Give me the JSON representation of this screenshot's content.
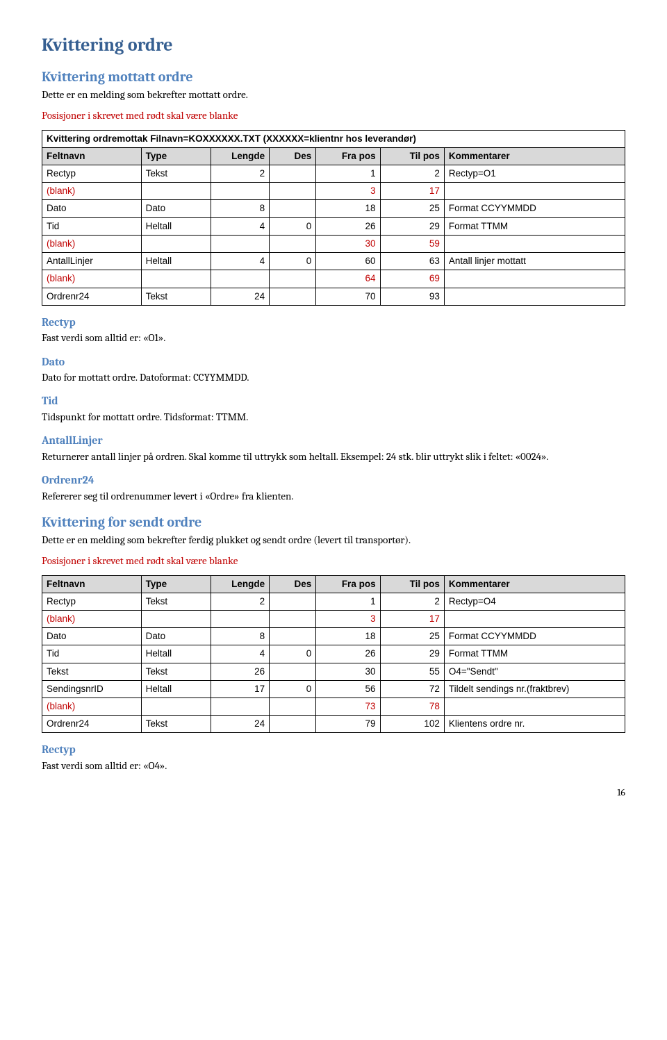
{
  "h1": "Kvittering ordre",
  "sec1": {
    "h2": "Kvittering mottatt ordre",
    "intro": "Dette er en melding som bekrefter mottatt ordre.",
    "redline": "Posisjoner i skrevet med rødt skal være blanke",
    "caption": "Kvittering ordremottak Filnavn=KOXXXXXX.TXT  (XXXXXX=klientnr hos leverandør)",
    "headers": [
      "Feltnavn",
      "Type",
      "Lengde",
      "Des",
      "Fra pos",
      "Til pos",
      "Kommentarer"
    ],
    "rows": [
      {
        "f": "Rectyp",
        "t": "Tekst",
        "l": "2",
        "d": "",
        "fp": "1",
        "tp": "2",
        "k": "Rectyp=O1",
        "red": false
      },
      {
        "f": "(blank)",
        "t": "",
        "l": "",
        "d": "",
        "fp": "3",
        "tp": "17",
        "k": "",
        "red": true
      },
      {
        "f": "Dato",
        "t": "Dato",
        "l": "8",
        "d": "",
        "fp": "18",
        "tp": "25",
        "k": "Format CCYYMMDD",
        "red": false
      },
      {
        "f": "Tid",
        "t": "Heltall",
        "l": "4",
        "d": "0",
        "fp": "26",
        "tp": "29",
        "k": "Format TTMM",
        "red": false
      },
      {
        "f": "(blank)",
        "t": "",
        "l": "",
        "d": "",
        "fp": "30",
        "tp": "59",
        "k": "",
        "red": true
      },
      {
        "f": "AntallLinjer",
        "t": "Heltall",
        "l": "4",
        "d": "0",
        "fp": "60",
        "tp": "63",
        "k": "Antall linjer mottatt",
        "red": false
      },
      {
        "f": "(blank)",
        "t": "",
        "l": "",
        "d": "",
        "fp": "64",
        "tp": "69",
        "k": "",
        "red": true
      },
      {
        "f": "Ordrenr24",
        "t": "Tekst",
        "l": "24",
        "d": "",
        "fp": "70",
        "tp": "93",
        "k": "",
        "red": false
      }
    ],
    "defs": [
      {
        "h": "Rectyp",
        "p": "Fast verdi som alltid er: «O1»."
      },
      {
        "h": "Dato",
        "p": "Dato for mottatt ordre. Datoformat: CCYYMMDD."
      },
      {
        "h": "Tid",
        "p": "Tidspunkt for mottatt ordre. Tidsformat: TTMM."
      },
      {
        "h": "AntallLinjer",
        "p": "Returnerer antall linjer på ordren. Skal komme til uttrykk som heltall. Eksempel: 24 stk. blir uttrykt slik i feltet: «0024»."
      },
      {
        "h": "Ordrenr24",
        "p": "Refererer seg til ordrenummer levert i «Ordre» fra klienten."
      }
    ]
  },
  "sec2": {
    "h2": "Kvittering for sendt ordre",
    "intro": "Dette er en melding som bekrefter ferdig plukket og sendt ordre (levert til transportør).",
    "redline": "Posisjoner i skrevet med rødt skal være blanke",
    "headers": [
      "Feltnavn",
      "Type",
      "Lengde",
      "Des",
      "Fra pos",
      "Til pos",
      "Kommentarer"
    ],
    "rows": [
      {
        "f": "Rectyp",
        "t": "Tekst",
        "l": "2",
        "d": "",
        "fp": "1",
        "tp": "2",
        "k": "Rectyp=O4",
        "red": false
      },
      {
        "f": "(blank)",
        "t": "",
        "l": "",
        "d": "",
        "fp": "3",
        "tp": "17",
        "k": "",
        "red": true
      },
      {
        "f": "Dato",
        "t": "Dato",
        "l": "8",
        "d": "",
        "fp": "18",
        "tp": "25",
        "k": "Format CCYYMMDD",
        "red": false
      },
      {
        "f": "Tid",
        "t": "Heltall",
        "l": "4",
        "d": "0",
        "fp": "26",
        "tp": "29",
        "k": "Format TTMM",
        "red": false
      },
      {
        "f": "Tekst",
        "t": "Tekst",
        "l": "26",
        "d": "",
        "fp": "30",
        "tp": "55",
        "k": "O4=\"Sendt\"",
        "red": false
      },
      {
        "f": "SendingsnrID",
        "t": "Heltall",
        "l": "17",
        "d": "0",
        "fp": "56",
        "tp": "72",
        "k": "Tildelt sendings nr.(fraktbrev)",
        "red": false
      },
      {
        "f": "(blank)",
        "t": "",
        "l": "",
        "d": "",
        "fp": "73",
        "tp": "78",
        "k": "",
        "red": true
      },
      {
        "f": "Ordrenr24",
        "t": "Tekst",
        "l": "24",
        "d": "",
        "fp": "79",
        "tp": "102",
        "k": "Klientens ordre nr.",
        "red": false
      }
    ],
    "defs": [
      {
        "h": "Rectyp",
        "p": "Fast verdi som alltid er: «O4»."
      }
    ]
  },
  "pageNum": "16"
}
